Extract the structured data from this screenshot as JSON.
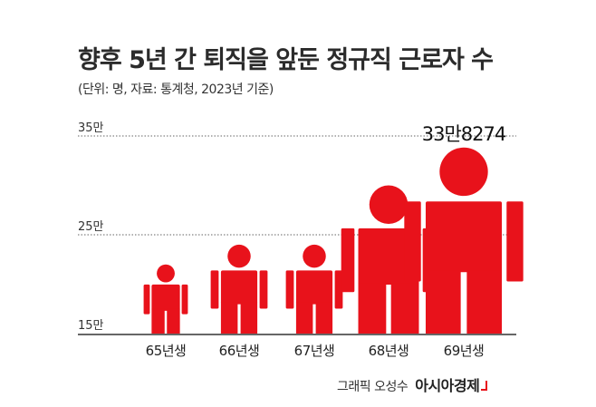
{
  "header": {
    "title": "향후 5년 간 퇴직을 앞둔 정규직 근로자 수",
    "subtitle": "(단위: 명, 자료: 통계청, 2023년 기준)"
  },
  "chart_data": {
    "type": "bar",
    "title": "향후 5년 간 퇴직을 앞둔 정규직 근로자 수",
    "categories": [
      "65년생",
      "66년생",
      "67년생",
      "68년생",
      "69년생"
    ],
    "values": [
      220000,
      240000,
      240000,
      300000,
      338274
    ],
    "ylim": [
      150000,
      350000
    ],
    "yticks": [
      150000,
      250000,
      350000
    ],
    "ytick_labels": [
      "15만",
      "25만",
      "35만"
    ],
    "annotation": {
      "category": "69년생",
      "text": "33만8274"
    },
    "grid": true,
    "mark": "person-icon",
    "color": "#e8121b"
  },
  "footer": {
    "credit": "그래픽 오성수",
    "brand": "아시아경제"
  }
}
